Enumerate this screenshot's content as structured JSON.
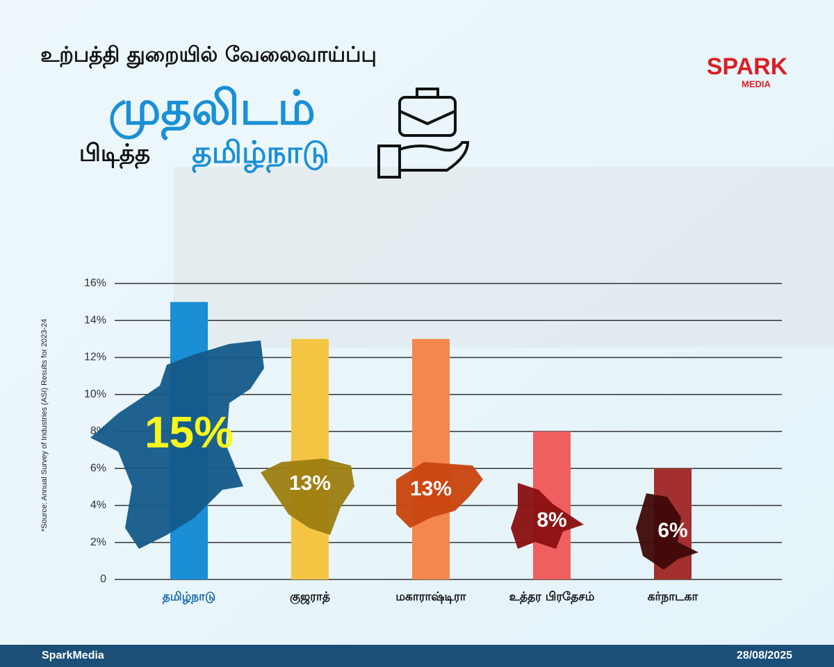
{
  "header": {
    "line1": "உற்பத்தி துறையில் வேலைவாய்ப்பு",
    "line2": "முதலிடம்",
    "line3a": "பிடித்த",
    "line3b": "தமிழ்நாடு"
  },
  "logo": {
    "brand": "SPARK",
    "sub": "MEDIA"
  },
  "chart_data": {
    "type": "bar",
    "categories": [
      "தமிழ்நாடு",
      "குஜராத்",
      "மகாராஷ்டிரா",
      "உத்தர பிரதேசம்",
      "கர்நாடகா"
    ],
    "values": [
      15,
      13,
      13,
      8,
      6
    ],
    "value_labels": [
      "15%",
      "13%",
      "13%",
      "8%",
      "6%"
    ],
    "colors": [
      "#1a8fd6",
      "#f4c542",
      "#f4874d",
      "#ef5f5f",
      "#a3302e"
    ],
    "ylim": [
      0,
      16
    ],
    "yticks": [
      0,
      {
        "value": 2,
        "label": "2%"
      },
      {
        "value": 4,
        "label": "4%"
      },
      {
        "value": 6,
        "label": "6%"
      },
      {
        "value": 8,
        "label": "8%"
      },
      {
        "value": 10,
        "label": "10%"
      },
      {
        "value": 12,
        "label": "12%"
      },
      {
        "value": 14,
        "label": "14%"
      },
      {
        "value": 16,
        "label": "16%"
      }
    ],
    "grid": true,
    "source": "*Source: Annual Survey of Industries (ASI) Results for 2023-24"
  },
  "footer": {
    "brand": "SparkMedia",
    "date": "28/08/2025"
  }
}
